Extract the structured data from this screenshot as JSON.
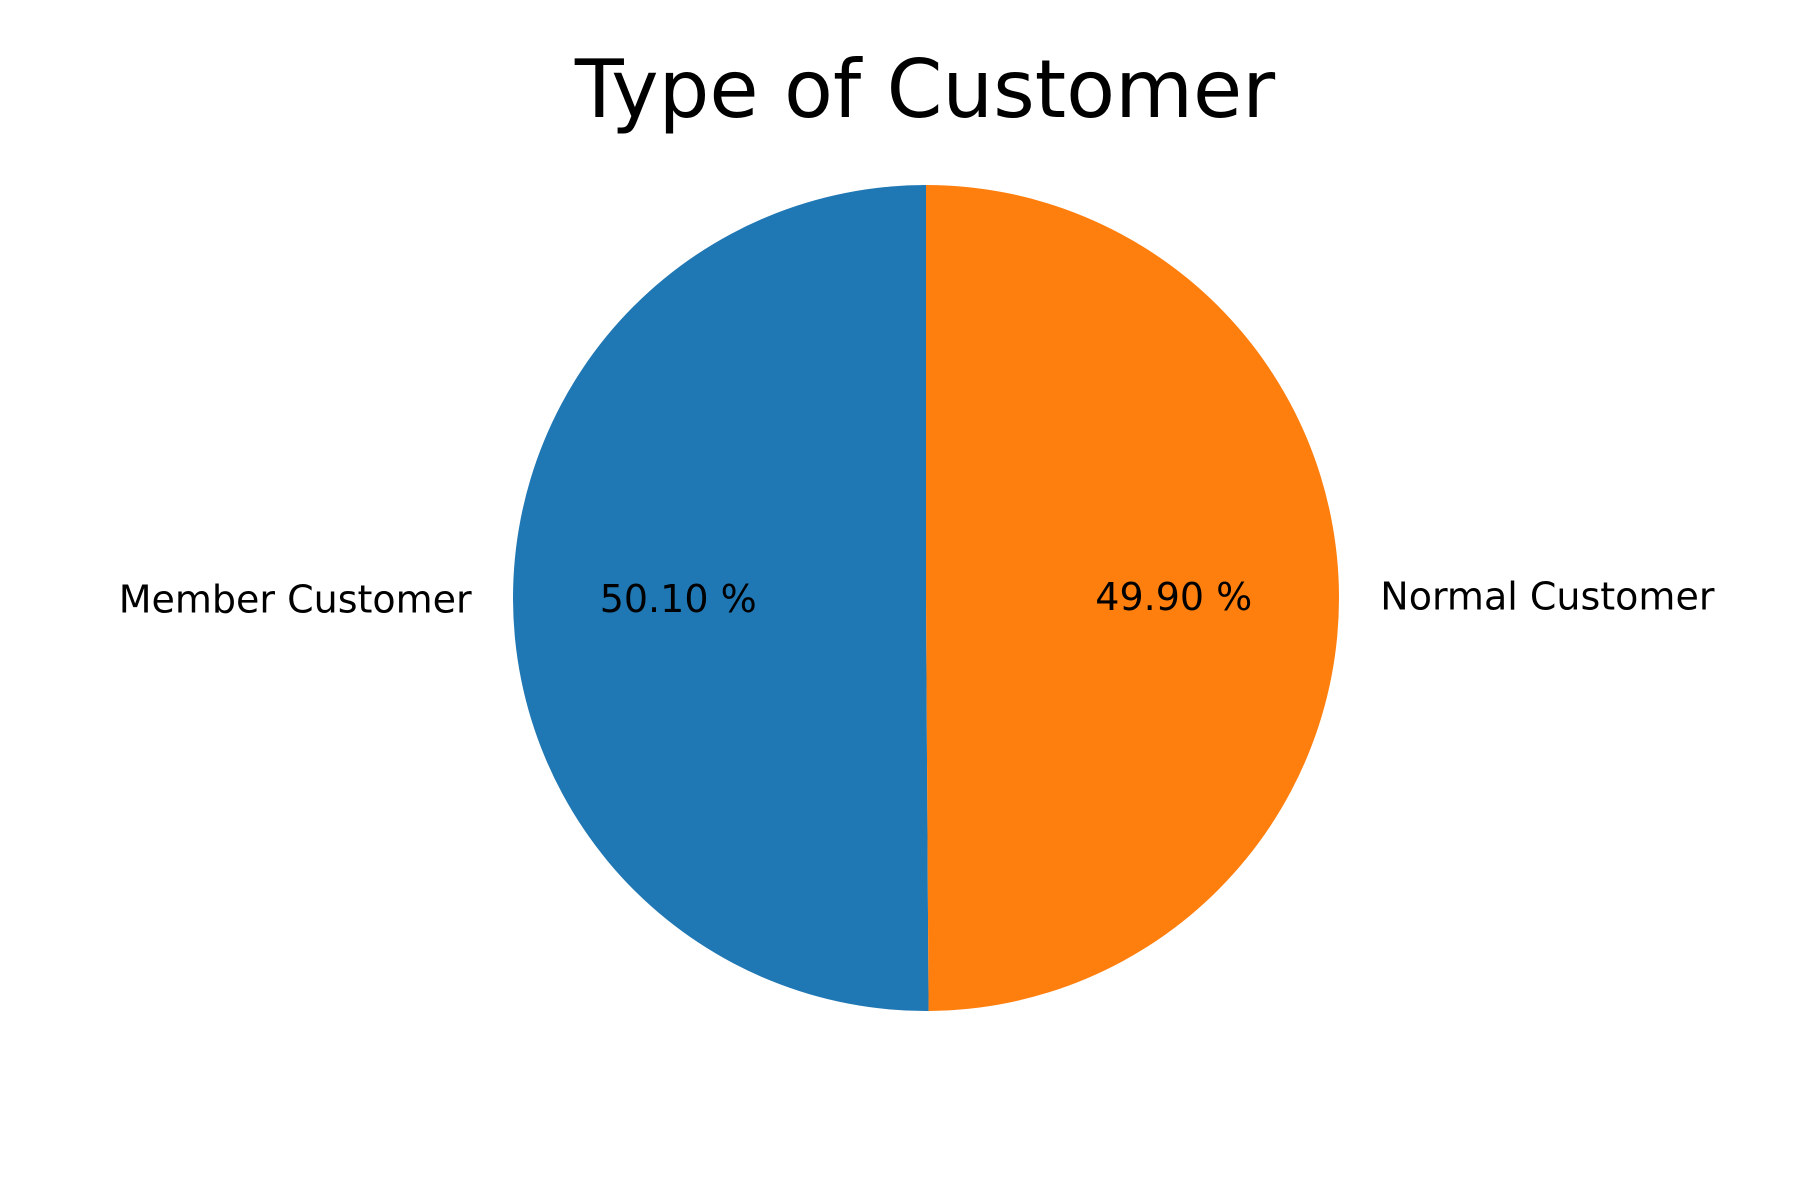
{
  "chart_data": {
    "type": "pie",
    "title": "Type of Customer",
    "categories": [
      "Member Customer",
      "Normal Customer"
    ],
    "values": [
      50.1,
      49.9
    ],
    "value_labels": [
      "50.10 %",
      "49.90 %"
    ],
    "colors": [
      "#1f77b4",
      "#ff7f0e"
    ],
    "start_angle_deg": 90,
    "direction": "counterclockwise",
    "legend": "none"
  }
}
